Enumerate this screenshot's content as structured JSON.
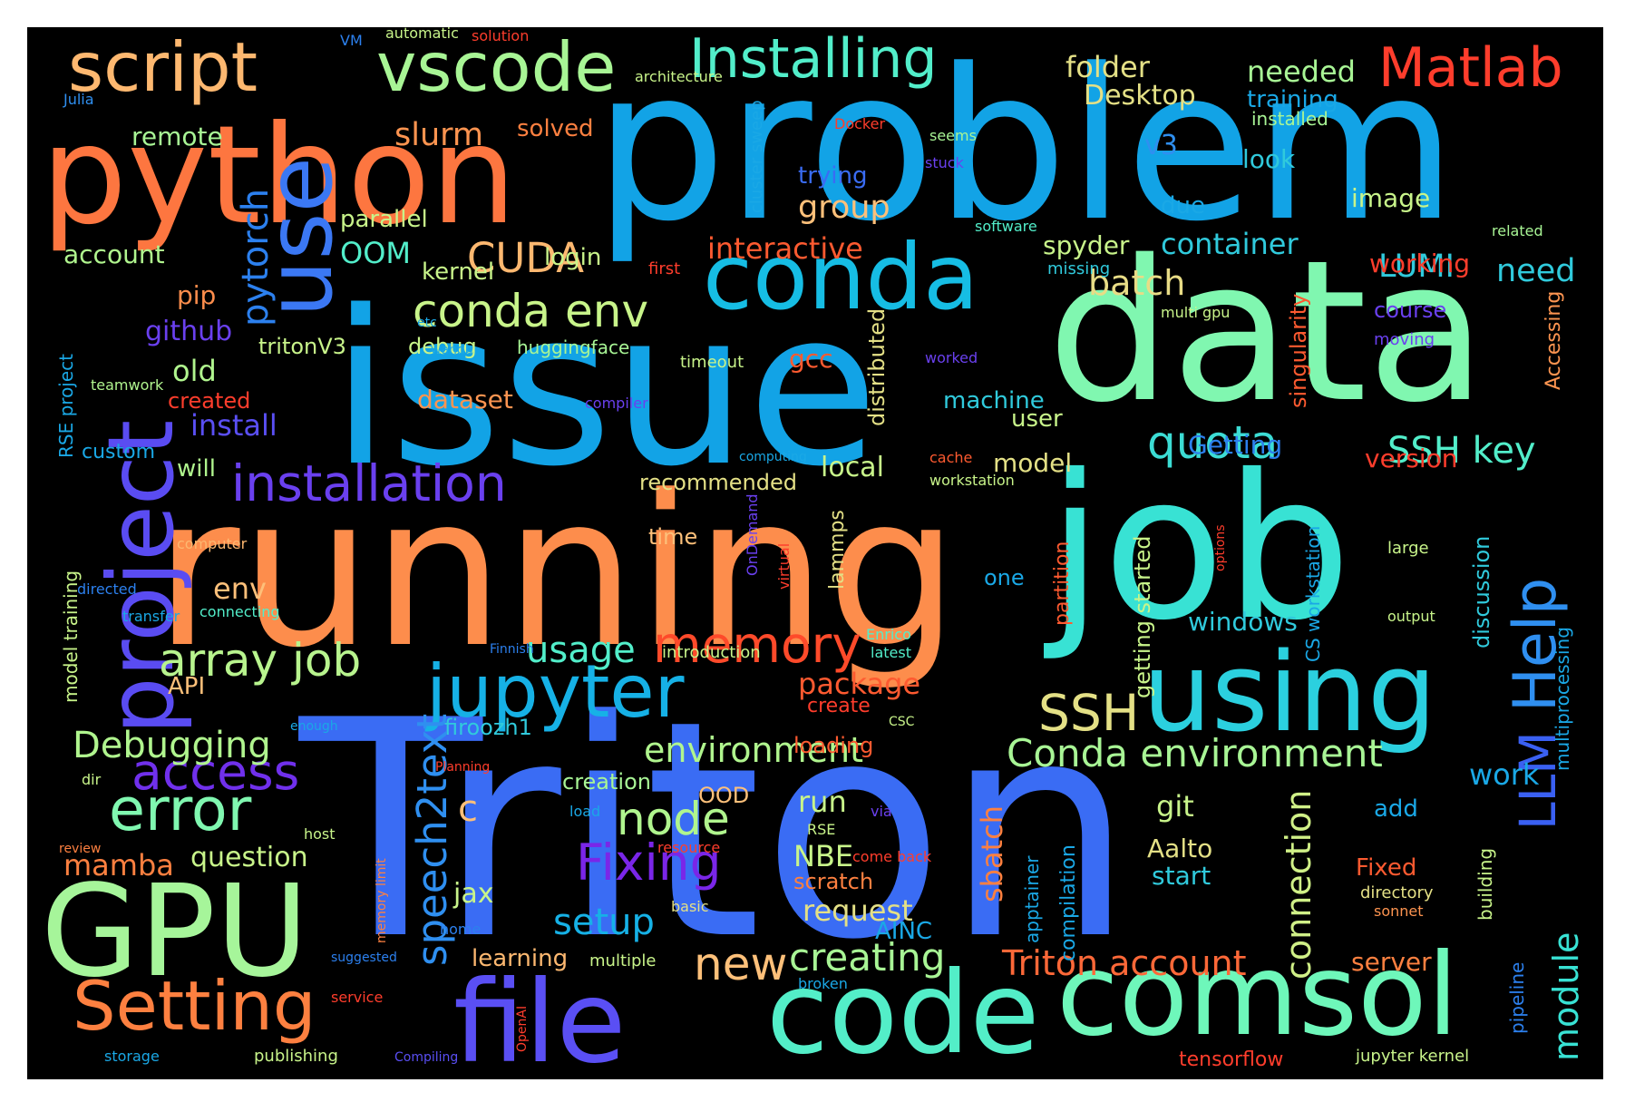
{
  "background": "#000000",
  "frame": "#ffffff",
  "words": [
    {
      "text": "Triton",
      "color": "#3a6cf4"
    },
    {
      "text": "issue",
      "color": "#12a3e6"
    },
    {
      "text": "problem",
      "color": "#12a3e6"
    },
    {
      "text": "running",
      "color": "#fd8d4c"
    },
    {
      "text": "job",
      "color": "#38e2d4"
    },
    {
      "text": "data",
      "color": "#80f7b0"
    },
    {
      "text": "python",
      "color": "#fd7640"
    },
    {
      "text": "GPU",
      "color": "#a6f59a"
    },
    {
      "text": "code",
      "color": "#53eec8"
    },
    {
      "text": "comsol",
      "color": "#6ef7ba"
    },
    {
      "text": "file",
      "color": "#5a4ff4"
    },
    {
      "text": "using",
      "color": "#2bd0df"
    },
    {
      "text": "conda",
      "color": "#16bde4"
    },
    {
      "text": "use",
      "color": "#3b78f4"
    },
    {
      "text": "project",
      "color": "#5a4cf2"
    },
    {
      "text": "Setting",
      "color": "#fd8040"
    },
    {
      "text": "jupyter",
      "color": "#16b1e6"
    },
    {
      "text": "script",
      "color": "#fdb870"
    },
    {
      "text": "vscode",
      "color": "#a8f595"
    },
    {
      "text": "Installing",
      "color": "#52eeca"
    },
    {
      "text": "Matlab",
      "color": "#fe3d2c"
    },
    {
      "text": "Help",
      "color": "#2f8ff0"
    },
    {
      "text": "error",
      "color": "#80f7b0"
    },
    {
      "text": "installation",
      "color": "#6a40ef"
    },
    {
      "text": "array job",
      "color": "#b8f48e"
    },
    {
      "text": "memory",
      "color": "#fe4a2a"
    },
    {
      "text": "conda env",
      "color": "#c8f48a"
    },
    {
      "text": "LLM",
      "color": "#3a60f2"
    },
    {
      "text": "access",
      "color": "#7030ec"
    },
    {
      "text": "Fixing",
      "color": "#7a26e8"
    },
    {
      "text": "node",
      "color": "#b0f58e"
    },
    {
      "text": "SSH",
      "color": "#e4e086"
    },
    {
      "text": "new",
      "color": "#fdc07a"
    },
    {
      "text": "quota",
      "color": "#3cdcd4"
    },
    {
      "text": "Conda environment",
      "color": "#a8f595"
    },
    {
      "text": "creating",
      "color": "#a8f595"
    },
    {
      "text": "Triton account",
      "color": "#fd6838"
    },
    {
      "text": "speech2text",
      "color": "#2f8ff0"
    },
    {
      "text": "CUDA",
      "color": "#fdb870"
    },
    {
      "text": "pytorch",
      "color": "#2c80ee"
    },
    {
      "text": "Debugging",
      "color": "#b0f58e"
    },
    {
      "text": "environment",
      "color": "#b0f58e"
    },
    {
      "text": "SSH key",
      "color": "#52eeca"
    },
    {
      "text": "usage",
      "color": "#52eeca"
    },
    {
      "text": "setup",
      "color": "#16b1e6"
    },
    {
      "text": "connection",
      "color": "#d0f087"
    },
    {
      "text": "module",
      "color": "#38e2d4"
    },
    {
      "text": "slurm",
      "color": "#fd9450"
    },
    {
      "text": "interactive",
      "color": "#fe5a30"
    },
    {
      "text": "container",
      "color": "#30cadc"
    },
    {
      "text": "batch",
      "color": "#e8dc86"
    },
    {
      "text": "group",
      "color": "#fdc07a"
    },
    {
      "text": "LUMI",
      "color": "#30cadc"
    },
    {
      "text": "need",
      "color": "#30cadc"
    },
    {
      "text": "folder",
      "color": "#e4e086"
    },
    {
      "text": "needed",
      "color": "#a8f595"
    },
    {
      "text": "Desktop",
      "color": "#e4e086"
    },
    {
      "text": "training",
      "color": "#1aa8e6"
    },
    {
      "text": "installed",
      "color": "#a8f595"
    },
    {
      "text": "v3",
      "color": "#2f8ff0"
    },
    {
      "text": "look",
      "color": "#30cadc"
    },
    {
      "text": "image",
      "color": "#c8f48a"
    },
    {
      "text": "due",
      "color": "#1aa8e6"
    },
    {
      "text": "trying",
      "color": "#3a6cf4"
    },
    {
      "text": "remote",
      "color": "#a8f595"
    },
    {
      "text": "solved",
      "color": "#fd8040"
    },
    {
      "text": "architecture",
      "color": "#c8f48a"
    },
    {
      "text": "automatic",
      "color": "#c8f48a"
    },
    {
      "text": "solution",
      "color": "#fe3d2c"
    },
    {
      "text": "VM",
      "color": "#2c80ee"
    },
    {
      "text": "Julia",
      "color": "#2f8ff0"
    },
    {
      "text": "cluster sweep",
      "color": "#1aa8e6"
    },
    {
      "text": "Docker",
      "color": "#fe3d2c"
    },
    {
      "text": "seems",
      "color": "#a8f595"
    },
    {
      "text": "stuck",
      "color": "#6a40ef"
    },
    {
      "text": "parallel",
      "color": "#c8f48a"
    },
    {
      "text": "account",
      "color": "#b0f58e"
    },
    {
      "text": "OOM",
      "color": "#52eeca"
    },
    {
      "text": "kernel",
      "color": "#c8f48a"
    },
    {
      "text": "login",
      "color": "#c8f48a"
    },
    {
      "text": "first",
      "color": "#fe3d2c"
    },
    {
      "text": "software",
      "color": "#52eeca"
    },
    {
      "text": "related",
      "color": "#a8f595"
    },
    {
      "text": "missing",
      "color": "#30cadc"
    },
    {
      "text": "spyder",
      "color": "#c8f48a"
    },
    {
      "text": "working",
      "color": "#fe3d2c"
    },
    {
      "text": "Accessing",
      "color": "#fd9450"
    },
    {
      "text": "pip",
      "color": "#fd8d4c"
    },
    {
      "text": "github",
      "color": "#6a40ef"
    },
    {
      "text": "tritonV3",
      "color": "#c8f48a"
    },
    {
      "text": "debug",
      "color": "#c8f48a"
    },
    {
      "text": "huggingface",
      "color": "#a8f595"
    },
    {
      "text": "timeout",
      "color": "#c8f48a"
    },
    {
      "text": "worked",
      "color": "#6a40ef"
    },
    {
      "text": "singularity",
      "color": "#fd5a30"
    },
    {
      "text": "multi gpu",
      "color": "#c8f48a"
    },
    {
      "text": "course",
      "color": "#6a40ef"
    },
    {
      "text": "moving",
      "color": "#6a40ef"
    },
    {
      "text": "distributed",
      "color": "#e4e086"
    },
    {
      "text": "gcc",
      "color": "#fe5a30"
    },
    {
      "text": "old",
      "color": "#b0f58e"
    },
    {
      "text": "created",
      "color": "#fe3d2c"
    },
    {
      "text": "install",
      "color": "#5a4ff4"
    },
    {
      "text": "dataset",
      "color": "#fd9450"
    },
    {
      "text": "machine",
      "color": "#30cadc"
    },
    {
      "text": "user",
      "color": "#c8f48a"
    },
    {
      "text": "Getting",
      "color": "#2c80ee"
    },
    {
      "text": "version",
      "color": "#fe3d2c"
    },
    {
      "text": "etc",
      "color": "#1aa8e6"
    },
    {
      "text": "wandb",
      "color": "#1aa8e6"
    },
    {
      "text": "compiler",
      "color": "#6a40ef"
    },
    {
      "text": "teamwork",
      "color": "#b0f58e"
    },
    {
      "text": "RSE project",
      "color": "#1aa8e6"
    },
    {
      "text": "model training",
      "color": "#c8f48a"
    },
    {
      "text": "custom",
      "color": "#1aa8e6"
    },
    {
      "text": "will",
      "color": "#b0f58e"
    },
    {
      "text": "model",
      "color": "#e4e086"
    },
    {
      "text": "local",
      "color": "#c8f48a"
    },
    {
      "text": "recommended",
      "color": "#e4e086"
    },
    {
      "text": "computing",
      "color": "#1aa8e6"
    },
    {
      "text": "cache",
      "color": "#fe5a30"
    },
    {
      "text": "workstation",
      "color": "#c8f48a"
    },
    {
      "text": "getting started",
      "color": "#c8f48a"
    },
    {
      "text": "CS workstation",
      "color": "#1aa8e6"
    },
    {
      "text": "discussion",
      "color": "#30cadc"
    },
    {
      "text": "multiprocessing",
      "color": "#1aa8e6"
    },
    {
      "text": "options",
      "color": "#fe3d2c"
    },
    {
      "text": "large",
      "color": "#c8f48a"
    },
    {
      "text": "time",
      "color": "#fdc07a"
    },
    {
      "text": "lammps",
      "color": "#e4e086"
    },
    {
      "text": "virtual",
      "color": "#fe3d2c"
    },
    {
      "text": "OnDemand",
      "color": "#6a40ef"
    },
    {
      "text": "partition",
      "color": "#fe5a30"
    },
    {
      "text": "one",
      "color": "#1aa8e6"
    },
    {
      "text": "computer",
      "color": "#fdb870"
    },
    {
      "text": "env",
      "color": "#fdc07a"
    },
    {
      "text": "directed",
      "color": "#2c80ee"
    },
    {
      "text": "transfer",
      "color": "#1aa8e6"
    },
    {
      "text": "connecting",
      "color": "#52eeca"
    },
    {
      "text": "windows",
      "color": "#30cadc"
    },
    {
      "text": "output",
      "color": "#c8f48a"
    },
    {
      "text": "Enrico",
      "color": "#52eeca"
    },
    {
      "text": "latest",
      "color": "#52eeca"
    },
    {
      "text": "Finnish",
      "color": "#2c80ee"
    },
    {
      "text": "introduction",
      "color": "#c8f48a"
    },
    {
      "text": "package",
      "color": "#fe5a30"
    },
    {
      "text": "create",
      "color": "#fe3d2c"
    },
    {
      "text": "API",
      "color": "#fdc07a"
    },
    {
      "text": "enough",
      "color": "#1aa8e6"
    },
    {
      "text": "CSC",
      "color": "#c8f48a"
    },
    {
      "text": "loading",
      "color": "#fe5a30"
    },
    {
      "text": "dir",
      "color": "#c8f48a"
    },
    {
      "text": "Planning",
      "color": "#fe3d2c"
    },
    {
      "text": "work",
      "color": "#1aa8e6"
    },
    {
      "text": "run",
      "color": "#c8f48a"
    },
    {
      "text": "OOD",
      "color": "#fdc07a"
    },
    {
      "text": "creation",
      "color": "#a8f595"
    },
    {
      "text": "via",
      "color": "#6a40ef"
    },
    {
      "text": "git",
      "color": "#c8f48a"
    },
    {
      "text": "add",
      "color": "#1aa8e6"
    },
    {
      "text": "c",
      "color": "#fdc07a"
    },
    {
      "text": "load",
      "color": "#1aa8e6"
    },
    {
      "text": "RSE",
      "color": "#c8f48a"
    },
    {
      "text": "NBE",
      "color": "#c8f48a"
    },
    {
      "text": "come back",
      "color": "#fe3d2c"
    },
    {
      "text": "resource",
      "color": "#fe3d2c"
    },
    {
      "text": "memory limit",
      "color": "#fd8040"
    },
    {
      "text": "host",
      "color": "#c8f48a"
    },
    {
      "text": "review",
      "color": "#fd8040"
    },
    {
      "text": "mamba",
      "color": "#fd8040"
    },
    {
      "text": "question",
      "color": "#c8f48a"
    },
    {
      "text": "sbatch",
      "color": "#fd8040"
    },
    {
      "text": "apptainer",
      "color": "#1aa8e6"
    },
    {
      "text": "compilation",
      "color": "#1aa8e6"
    },
    {
      "text": "Aalto",
      "color": "#e4e086"
    },
    {
      "text": "start",
      "color": "#30cadc"
    },
    {
      "text": "building",
      "color": "#c8f48a"
    },
    {
      "text": "Fixed",
      "color": "#fd5a30"
    },
    {
      "text": "directory",
      "color": "#e4e086"
    },
    {
      "text": "sonnet",
      "color": "#fd9450"
    },
    {
      "text": "scratch",
      "color": "#fd8040"
    },
    {
      "text": "request",
      "color": "#e4e086"
    },
    {
      "text": "basic",
      "color": "#e4e086"
    },
    {
      "text": "jax",
      "color": "#c8f48a"
    },
    {
      "text": "home",
      "color": "#2c80ee"
    },
    {
      "text": "AINC",
      "color": "#1aa8e6"
    },
    {
      "text": "learning",
      "color": "#fdb870"
    },
    {
      "text": "multiple",
      "color": "#c8f48a"
    },
    {
      "text": "suggested",
      "color": "#2c80ee"
    },
    {
      "text": "service",
      "color": "#fe3d2c"
    },
    {
      "text": "OpenAI",
      "color": "#fe3d2c"
    },
    {
      "text": "broken",
      "color": "#1aa8e6"
    },
    {
      "text": "server",
      "color": "#fd8040"
    },
    {
      "text": "pipeline",
      "color": "#2c80ee"
    },
    {
      "text": "storage",
      "color": "#1aa8e6"
    },
    {
      "text": "publishing",
      "color": "#c8f48a"
    },
    {
      "text": "Compiling",
      "color": "#5a4ff4"
    },
    {
      "text": "tensorflow",
      "color": "#fe3d2c"
    },
    {
      "text": "jupyter kernel",
      "color": "#c8f48a"
    },
    {
      "text": "firoozh1",
      "color": "#30cadc"
    }
  ]
}
